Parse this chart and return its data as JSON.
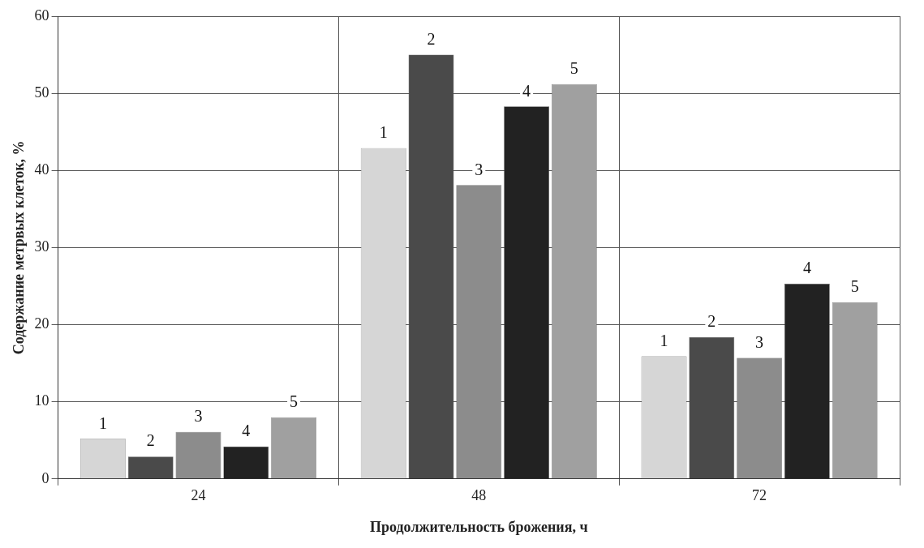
{
  "chart_data": {
    "type": "bar",
    "xlabel": "Продолжительность брожения, ч",
    "ylabel": "Содержание метрвых клеток, %",
    "categories": [
      "24",
      "48",
      "72"
    ],
    "series": [
      {
        "name": "1",
        "color": "#d6d6d6",
        "values": [
          5.2,
          42.9,
          15.9
        ]
      },
      {
        "name": "2",
        "color": "#4a4a4a",
        "values": [
          2.9,
          55,
          18.4
        ]
      },
      {
        "name": "3",
        "color": "#8c8c8c",
        "values": [
          6.1,
          38.1,
          15.7
        ]
      },
      {
        "name": "4",
        "color": "#222222",
        "values": [
          4.2,
          48.3,
          25.3
        ]
      },
      {
        "name": "5",
        "color": "#a0a0a0",
        "values": [
          8,
          51.2,
          22.9
        ]
      }
    ],
    "ylim": [
      0,
      60
    ],
    "yticks": [
      0,
      10,
      20,
      30,
      40,
      50,
      60
    ],
    "grid": true,
    "legend": false
  }
}
